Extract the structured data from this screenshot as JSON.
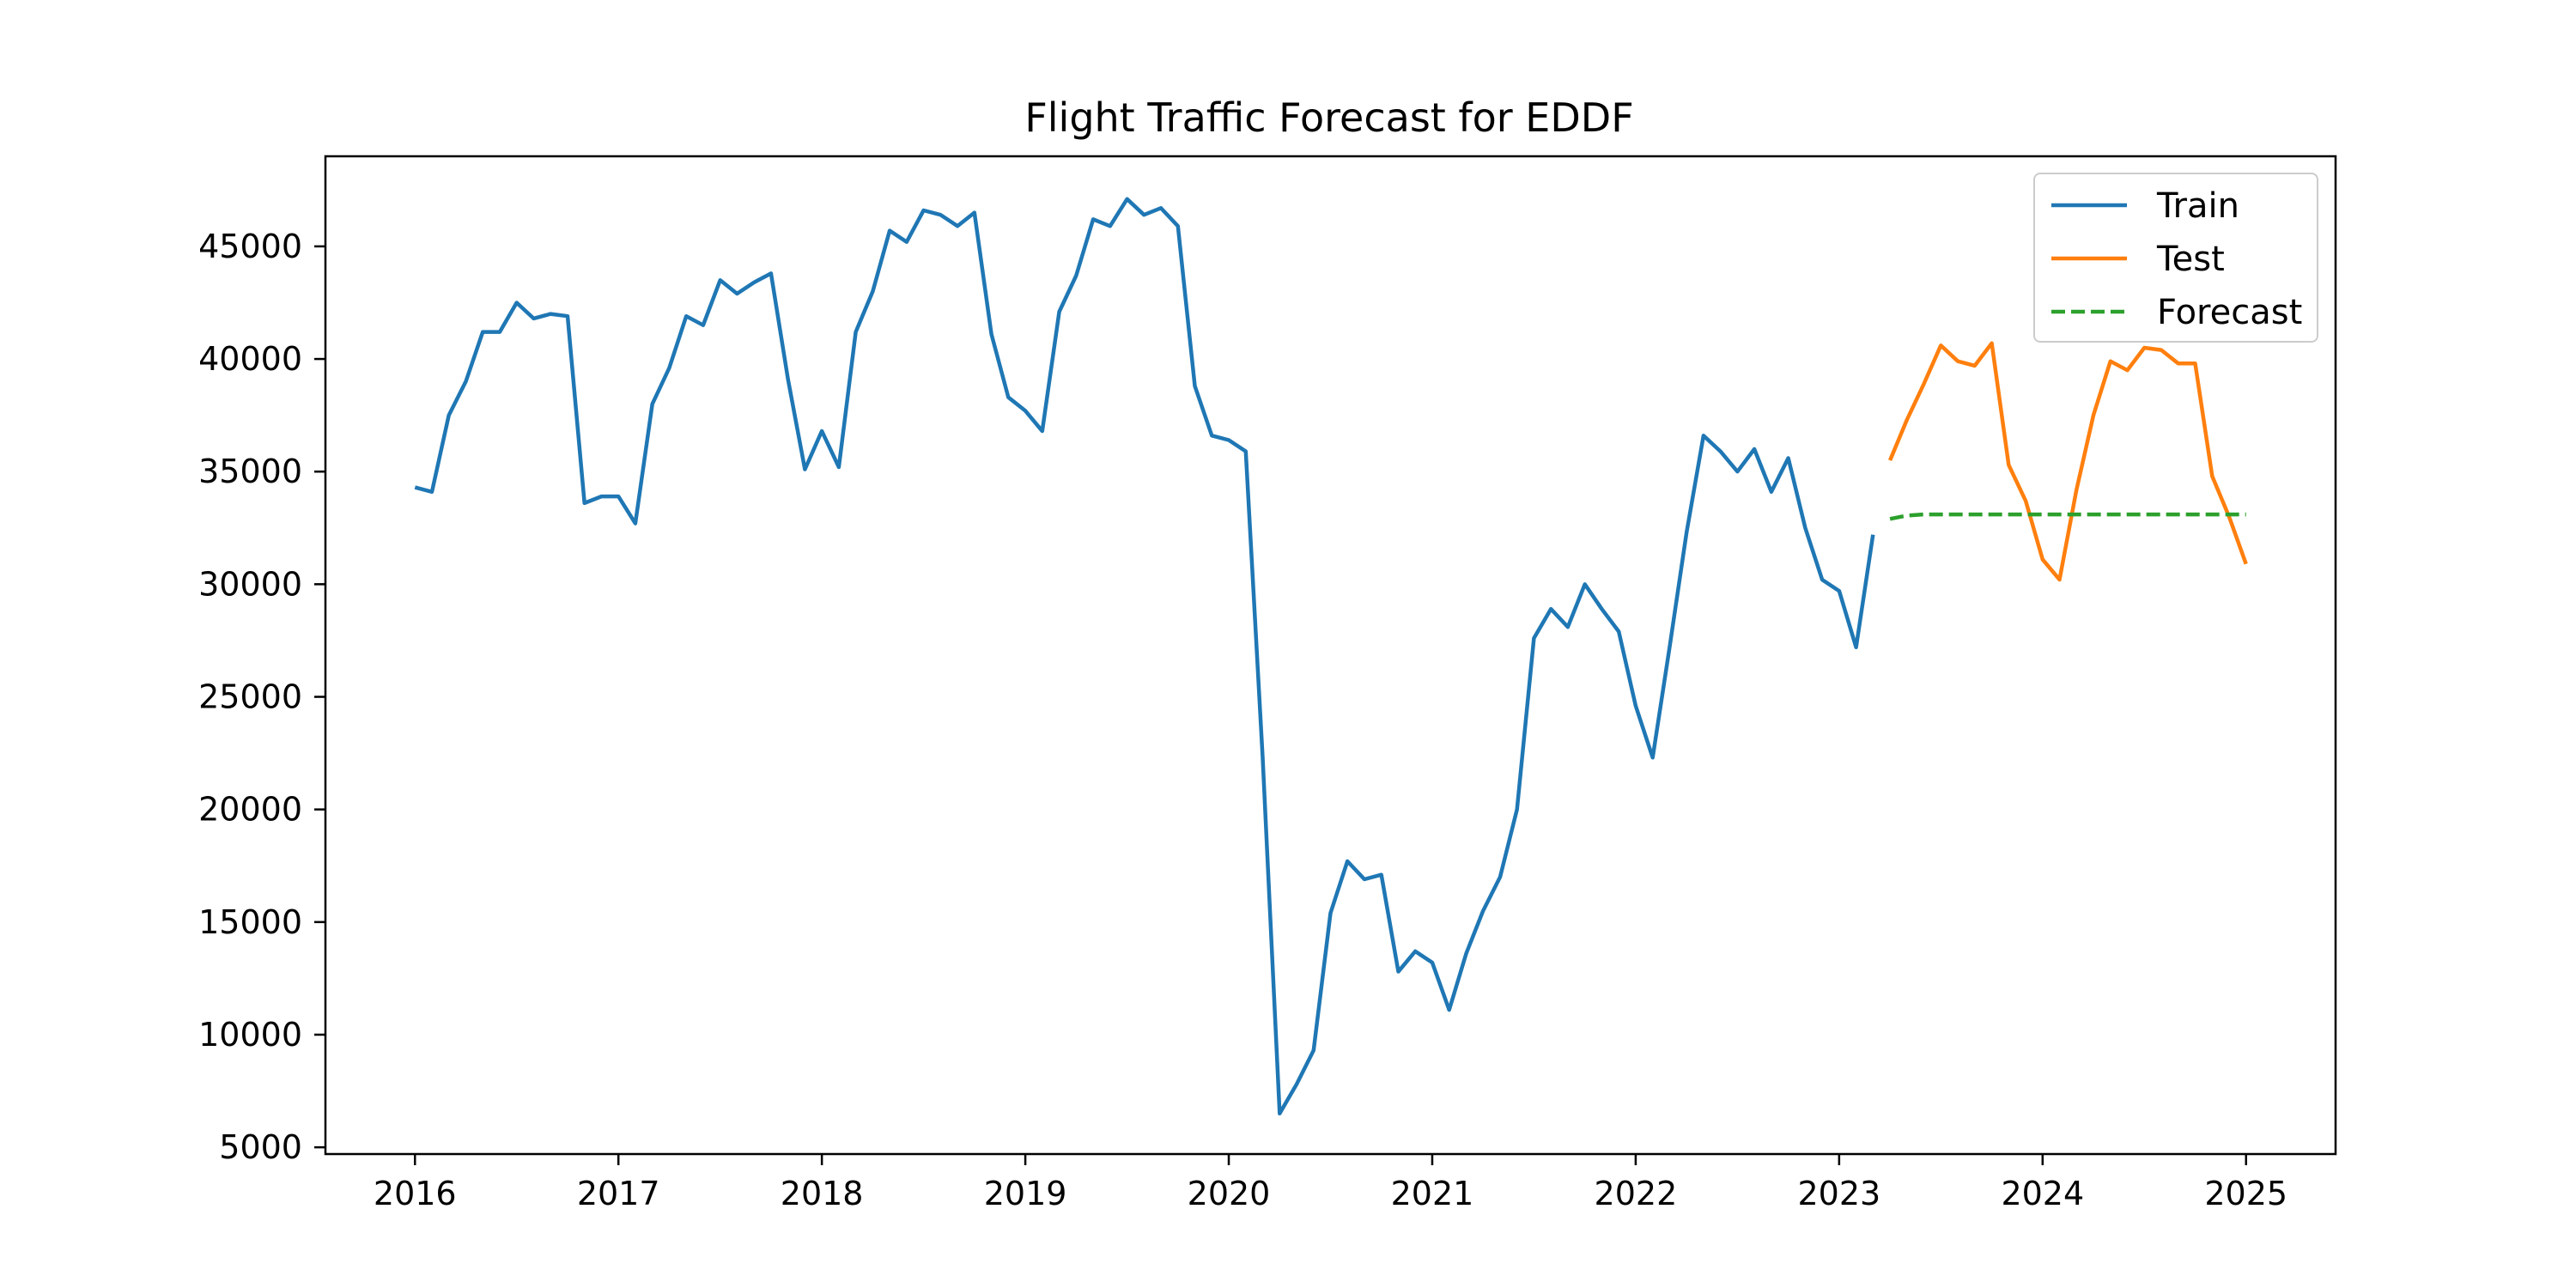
{
  "chart_data": {
    "type": "line",
    "title": "Flight Traffic Forecast for EDDF",
    "xlabel": "",
    "ylabel": "",
    "xlim": [
      2015.56,
      2025.44
    ],
    "ylim": [
      4700,
      49000
    ],
    "x_ticks": [
      2016,
      2017,
      2018,
      2019,
      2020,
      2021,
      2022,
      2023,
      2024,
      2025
    ],
    "x_tick_labels": [
      "2016",
      "2017",
      "2018",
      "2019",
      "2020",
      "2021",
      "2022",
      "2023",
      "2024",
      "2025"
    ],
    "y_ticks": [
      5000,
      10000,
      15000,
      20000,
      25000,
      30000,
      35000,
      40000,
      45000
    ],
    "y_tick_labels": [
      "5000",
      "10000",
      "15000",
      "20000",
      "25000",
      "30000",
      "35000",
      "40000",
      "45000"
    ],
    "grid": false,
    "legend_position": "top-right",
    "series": [
      {
        "name": "Train",
        "color": "#1f77b4",
        "style": "solid",
        "x": [
          "2016-01",
          "2016-02",
          "2016-03",
          "2016-04",
          "2016-05",
          "2016-06",
          "2016-07",
          "2016-08",
          "2016-09",
          "2016-10",
          "2016-11",
          "2016-12",
          "2017-01",
          "2017-02",
          "2017-03",
          "2017-04",
          "2017-05",
          "2017-06",
          "2017-07",
          "2017-08",
          "2017-09",
          "2017-10",
          "2017-11",
          "2017-12",
          "2018-01",
          "2018-02",
          "2018-03",
          "2018-04",
          "2018-05",
          "2018-06",
          "2018-07",
          "2018-08",
          "2018-09",
          "2018-10",
          "2018-11",
          "2018-12",
          "2019-01",
          "2019-02",
          "2019-03",
          "2019-04",
          "2019-05",
          "2019-06",
          "2019-07",
          "2019-08",
          "2019-09",
          "2019-10",
          "2019-11",
          "2019-12",
          "2020-01",
          "2020-02",
          "2020-03",
          "2020-04",
          "2020-05",
          "2020-06",
          "2020-07",
          "2020-08",
          "2020-09",
          "2020-10",
          "2020-11",
          "2020-12",
          "2021-01",
          "2021-02",
          "2021-03",
          "2021-04",
          "2021-05",
          "2021-06",
          "2021-07",
          "2021-08",
          "2021-09",
          "2021-10",
          "2021-11",
          "2021-12",
          "2022-01",
          "2022-02",
          "2022-03",
          "2022-04",
          "2022-05",
          "2022-06",
          "2022-07",
          "2022-08",
          "2022-09",
          "2022-10",
          "2022-11",
          "2022-12",
          "2023-01",
          "2023-02",
          "2023-03"
        ],
        "values": [
          34300,
          34100,
          37500,
          39000,
          41200,
          41200,
          42500,
          41800,
          42000,
          41900,
          33600,
          33900,
          33900,
          32700,
          38000,
          39600,
          41900,
          41500,
          43500,
          42900,
          43400,
          43800,
          39100,
          35100,
          36800,
          35200,
          41200,
          43000,
          45700,
          45200,
          46600,
          46400,
          45900,
          46500,
          41100,
          38300,
          37700,
          36800,
          42100,
          43700,
          46200,
          45900,
          47100,
          46400,
          46700,
          45900,
          38800,
          36600,
          36400,
          35900,
          22300,
          6500,
          7800,
          9300,
          15400,
          17700,
          16900,
          17100,
          12800,
          13700,
          13200,
          11100,
          13600,
          15500,
          17000,
          20000,
          27600,
          28900,
          28100,
          30000,
          28900,
          27900,
          24600,
          22300,
          27200,
          32300,
          36600,
          35900,
          35000,
          36000,
          34100,
          35600,
          32500,
          30200,
          29700,
          27200,
          32200
        ]
      },
      {
        "name": "Test",
        "color": "#ff7f0e",
        "style": "solid",
        "x": [
          "2023-04",
          "2023-05",
          "2023-06",
          "2023-07",
          "2023-08",
          "2023-09",
          "2023-10",
          "2023-11",
          "2023-12",
          "2024-01",
          "2024-02",
          "2024-03",
          "2024-04",
          "2024-05",
          "2024-06",
          "2024-07",
          "2024-08",
          "2024-09",
          "2024-10",
          "2024-11",
          "2024-12",
          "2025-01"
        ],
        "values": [
          35500,
          37300,
          38900,
          40600,
          39900,
          39700,
          40700,
          35300,
          33700,
          31100,
          30200,
          34200,
          37500,
          39900,
          39500,
          40500,
          40400,
          39800,
          39800,
          34800,
          33000,
          30900
        ]
      },
      {
        "name": "Forecast",
        "color": "#2ca02c",
        "style": "dashed",
        "x": [
          "2023-04",
          "2023-05",
          "2023-06",
          "2023-07",
          "2023-08",
          "2023-09",
          "2023-10",
          "2023-11",
          "2023-12",
          "2024-01",
          "2024-02",
          "2024-03",
          "2024-04",
          "2024-05",
          "2024-06",
          "2024-07",
          "2024-08",
          "2024-09",
          "2024-10",
          "2024-11",
          "2024-12",
          "2025-01"
        ],
        "values": [
          32900,
          33050,
          33100,
          33100,
          33100,
          33100,
          33100,
          33100,
          33100,
          33100,
          33100,
          33100,
          33100,
          33100,
          33100,
          33100,
          33100,
          33100,
          33100,
          33100,
          33100,
          33100
        ]
      }
    ]
  }
}
